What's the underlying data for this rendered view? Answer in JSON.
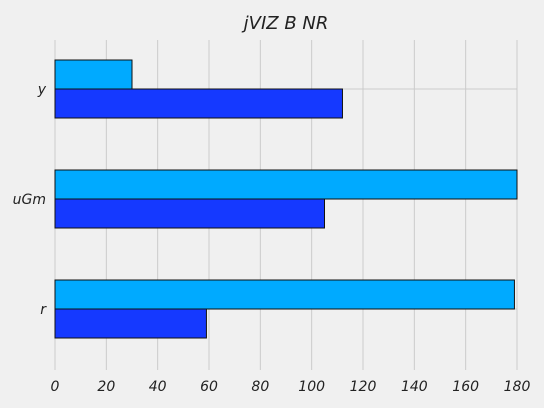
{
  "chart_data": {
    "type": "bar",
    "orientation": "horizontal",
    "title": "jVIZ  B   NR",
    "xlabel": "",
    "ylabel": "",
    "categories": [
      "r",
      "uGm",
      "y"
    ],
    "series": [
      {
        "values": [
          59,
          105,
          112
        ]
      },
      {
        "values": [
          179,
          180,
          30
        ]
      }
    ],
    "xlim": [
      0,
      180
    ],
    "xticks": [
      0,
      20,
      40,
      60,
      80,
      100,
      120,
      140,
      160,
      180
    ],
    "grid": true,
    "legend": "none",
    "colors": {
      "series_0": "#1539ff",
      "series_1": "#00aaff",
      "background": "#f0f0f0",
      "grid": "#cbcbcb"
    }
  }
}
